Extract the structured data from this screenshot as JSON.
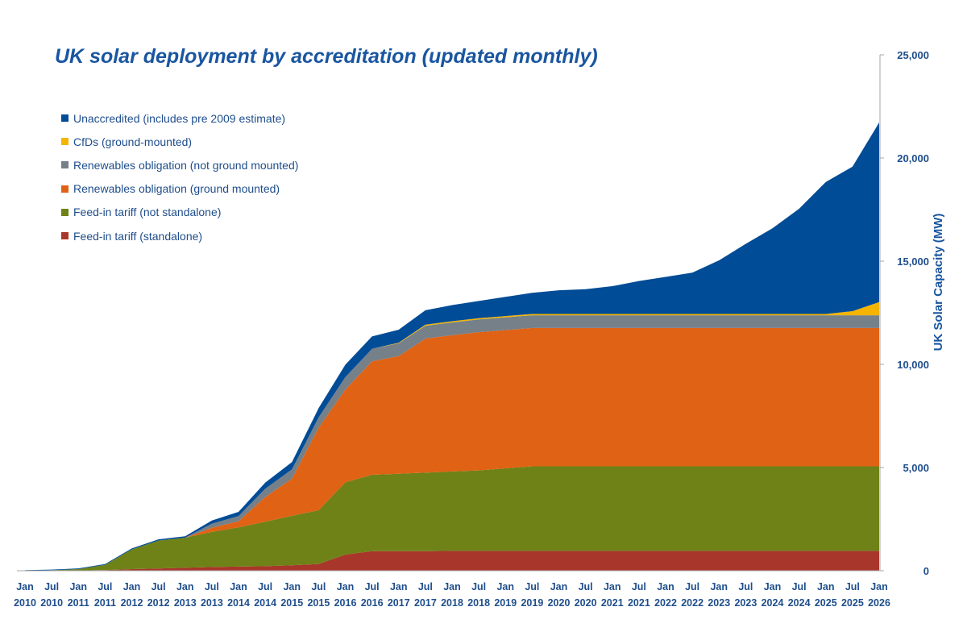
{
  "chart_data": {
    "type": "area",
    "stacked": true,
    "title": "UK solar deployment by accreditation (updated monthly)",
    "ylabel": "UK Solar Capacity (MW)",
    "xlabel": "",
    "ylim": [
      0,
      25000
    ],
    "y_ticks": [
      0,
      5000,
      10000,
      15000,
      20000,
      25000
    ],
    "y_tick_labels": [
      "0",
      "5,000",
      "10,000",
      "15,000",
      "20,000",
      "25,000"
    ],
    "y_axis_side": "right",
    "legend_position": "top-left",
    "x_start": "Jan 2010",
    "x_end": "Jan 2026",
    "x_tick_labels": [
      [
        "Jan",
        "2010"
      ],
      [
        "Jul",
        "2010"
      ],
      [
        "Jan",
        "2011"
      ],
      [
        "Jul",
        "2011"
      ],
      [
        "Jan",
        "2012"
      ],
      [
        "Jul",
        "2012"
      ],
      [
        "Jan",
        "2013"
      ],
      [
        "Jul",
        "2013"
      ],
      [
        "Jan",
        "2014"
      ],
      [
        "Jul",
        "2014"
      ],
      [
        "Jan",
        "2015"
      ],
      [
        "Jul",
        "2015"
      ],
      [
        "Jan",
        "2016"
      ],
      [
        "Jul",
        "2016"
      ],
      [
        "Jan",
        "2017"
      ],
      [
        "Jul",
        "2017"
      ],
      [
        "Jan",
        "2018"
      ],
      [
        "Jul",
        "2018"
      ],
      [
        "Jan",
        "2019"
      ],
      [
        "Jul",
        "2019"
      ],
      [
        "Jan",
        "2020"
      ],
      [
        "Jul",
        "2020"
      ],
      [
        "Jan",
        "2021"
      ],
      [
        "Jul",
        "2021"
      ],
      [
        "Jan",
        "2022"
      ],
      [
        "Jul",
        "2022"
      ],
      [
        "Jan",
        "2023"
      ],
      [
        "Jul",
        "2023"
      ],
      [
        "Jan",
        "2024"
      ],
      [
        "Jul",
        "2024"
      ],
      [
        "Jan",
        "2025"
      ],
      [
        "Jul",
        "2025"
      ],
      [
        "Jan",
        "2026"
      ]
    ],
    "series_note": "Stacked series values in MW at half-year points (Jan 2010 .. Jan 2026), bottom to top",
    "series": [
      {
        "name": "Feed-in tariff (standalone)",
        "color": "#a9362a",
        "values": [
          0,
          5,
          10,
          30,
          80,
          110,
          150,
          180,
          200,
          220,
          260,
          330,
          780,
          950,
          950,
          950,
          960,
          960,
          960,
          960,
          960,
          960,
          960,
          960,
          960,
          960,
          960,
          960,
          960,
          960,
          960,
          960,
          960
        ]
      },
      {
        "name": "Feed-in tariff (not standalone)",
        "color": "#6e8217",
        "values": [
          5,
          20,
          70,
          250,
          950,
          1350,
          1450,
          1700,
          1900,
          2150,
          2400,
          2600,
          3500,
          3700,
          3750,
          3800,
          3850,
          3900,
          4000,
          4100,
          4100,
          4100,
          4100,
          4100,
          4100,
          4100,
          4100,
          4100,
          4100,
          4100,
          4100,
          4100,
          4100
        ]
      },
      {
        "name": "Renewables obligation (ground mounted)",
        "color": "#e06214",
        "values": [
          0,
          0,
          0,
          0,
          0,
          0,
          0,
          200,
          300,
          1200,
          1800,
          4000,
          4500,
          5500,
          5700,
          6500,
          6600,
          6700,
          6700,
          6700,
          6700,
          6700,
          6700,
          6700,
          6700,
          6700,
          6700,
          6700,
          6700,
          6700,
          6700,
          6700,
          6700
        ]
      },
      {
        "name": "Renewables obligation (not ground mounted)",
        "color": "#758089",
        "values": [
          0,
          0,
          0,
          0,
          0,
          0,
          0,
          200,
          250,
          400,
          450,
          500,
          600,
          600,
          620,
          620,
          620,
          620,
          620,
          620,
          620,
          620,
          620,
          620,
          620,
          620,
          620,
          620,
          620,
          620,
          620,
          620,
          620
        ]
      },
      {
        "name": "CfDs (ground-mounted)",
        "color": "#f4b400",
        "values": [
          0,
          0,
          0,
          0,
          0,
          0,
          0,
          0,
          0,
          0,
          0,
          0,
          0,
          0,
          30,
          50,
          60,
          60,
          60,
          60,
          60,
          60,
          60,
          60,
          60,
          60,
          60,
          60,
          60,
          60,
          60,
          200,
          640
        ]
      },
      {
        "name": "Unaccredited (includes pre 2009 estimate)",
        "color": "#004c97",
        "values": [
          25,
          30,
          35,
          40,
          50,
          60,
          70,
          150,
          200,
          300,
          350,
          450,
          600,
          600,
          630,
          700,
          780,
          830,
          930,
          1030,
          1150,
          1200,
          1350,
          1600,
          1800,
          2000,
          2600,
          3400,
          4150,
          5100,
          6400,
          7000,
          8700
        ]
      }
    ]
  }
}
